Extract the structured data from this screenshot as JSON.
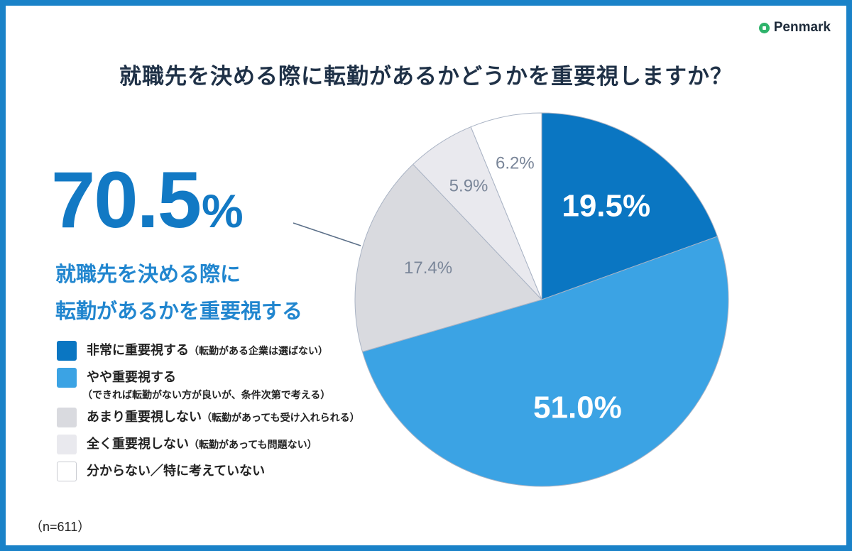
{
  "brand": {
    "name": "Penmark",
    "icon": "penmark-logo-icon",
    "icon_color": "#2fb36b"
  },
  "title": "就職先を決める際に転勤があるかどうかを重要視しますか？",
  "highlight": {
    "value": "70.5",
    "unit": "%",
    "line1": "就職先を決める際に",
    "line2": "転勤があるかを重要視する"
  },
  "sample_size": "（n=611）",
  "legend": [
    {
      "label": "非常に重要視する",
      "note": "（転勤がある企業は選ばない）",
      "sub": "",
      "color": "#0a76c2"
    },
    {
      "label": "やや重要視する",
      "note": "",
      "sub": "（できれば転勤がない方が良いが、条件次第で考える）",
      "color": "#3ba3e4"
    },
    {
      "label": "あまり重要視しない",
      "note": "（転勤があっても受け入れられる）",
      "sub": "",
      "color": "#d9dadf"
    },
    {
      "label": "全く重要視しない",
      "note": "（転勤があっても問題ない）",
      "sub": "",
      "color": "#e9e9ee"
    },
    {
      "label": "分からない／特に考えていない",
      "note": "",
      "sub": "",
      "color": "#ffffff"
    }
  ],
  "chart_data": {
    "type": "pie",
    "title": "就職先を決める際に転勤があるかどうかを重要視しますか？",
    "slices": [
      {
        "name": "非常に重要視する",
        "value": 19.5,
        "label": "19.5%",
        "color": "#0a76c2",
        "label_color": "#ffffff"
      },
      {
        "name": "やや重要視する",
        "value": 51.0,
        "label": "51.0%",
        "color": "#3ba3e4",
        "label_color": "#ffffff"
      },
      {
        "name": "あまり重要視しない",
        "value": 17.4,
        "label": "17.4%",
        "color": "#d9dadf",
        "label_color": "#7a8699"
      },
      {
        "name": "全く重要視しない",
        "value": 5.9,
        "label": "5.9%",
        "color": "#e9e9ee",
        "label_color": "#7a8699"
      },
      {
        "name": "分からない／特に考えていない",
        "value": 6.2,
        "label": "6.2%",
        "color": "#ffffff",
        "label_color": "#7a8699"
      }
    ],
    "start_angle": "12 o'clock",
    "direction": "clockwise"
  }
}
